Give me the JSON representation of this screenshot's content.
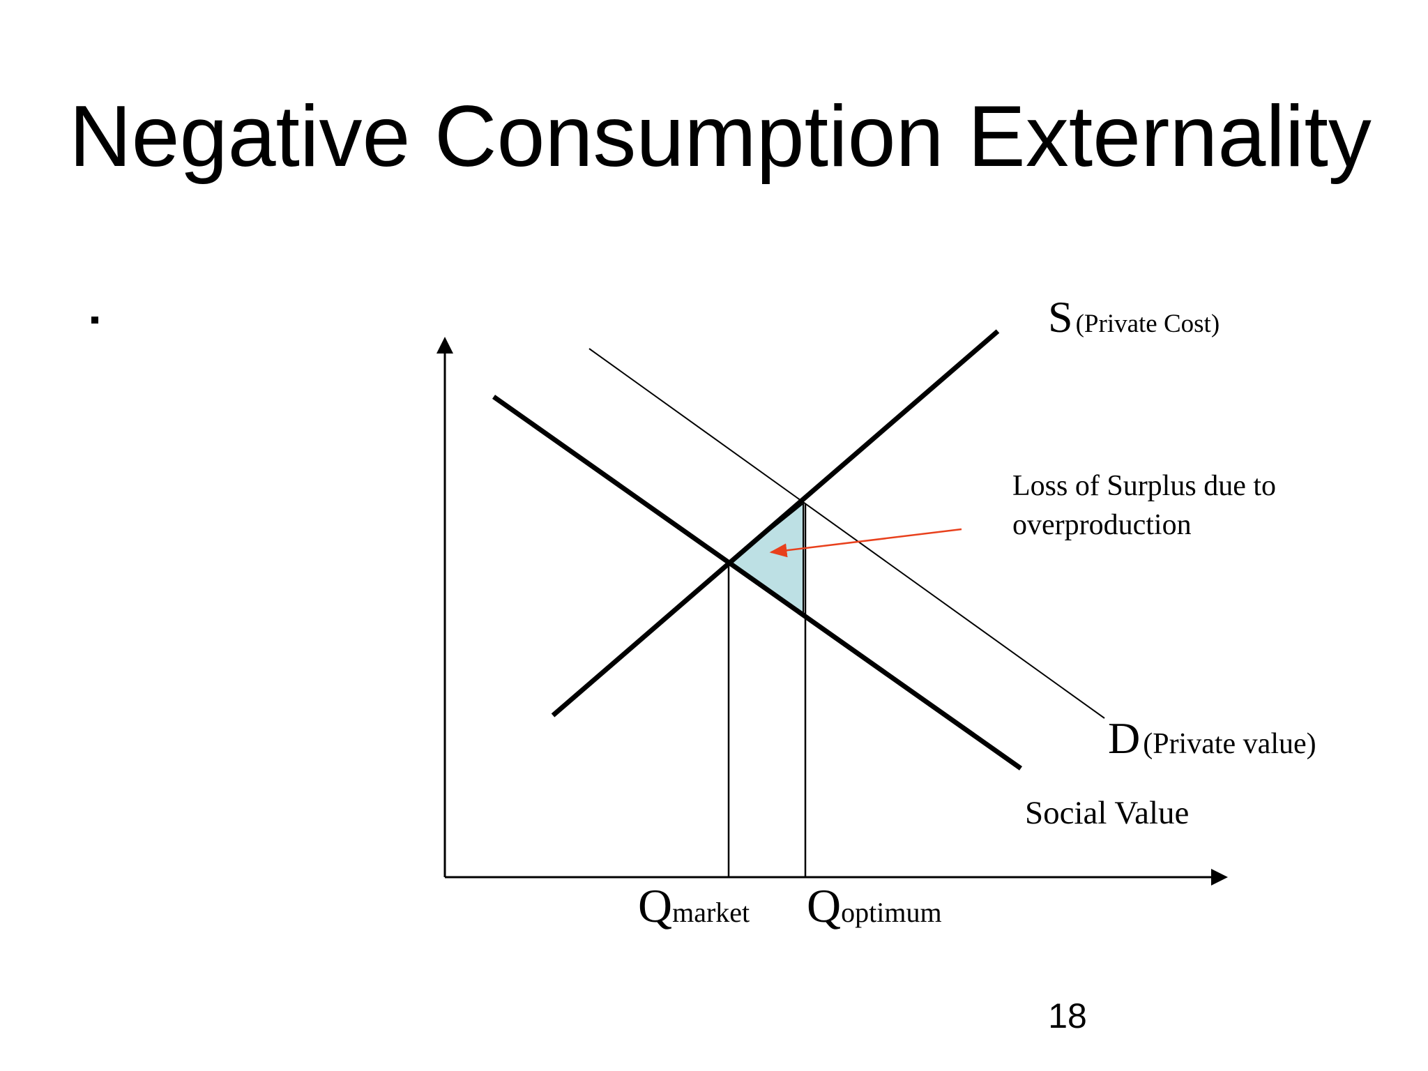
{
  "header": {
    "title": "Negative Consumption Externality"
  },
  "diagram": {
    "supply_label": {
      "letter": "S",
      "note": "(Private Cost)"
    },
    "demand_label": {
      "letter": "D",
      "note": "(Private value)"
    },
    "social_value_label": "Social Value",
    "annotation": [
      "Loss of Surplus due to",
      "overproduction"
    ],
    "q_market": {
      "letter": "Q",
      "sub": "market"
    },
    "q_optimum": {
      "letter": "Q",
      "sub": "optimum"
    }
  },
  "footer": {
    "page_number": "18"
  }
}
